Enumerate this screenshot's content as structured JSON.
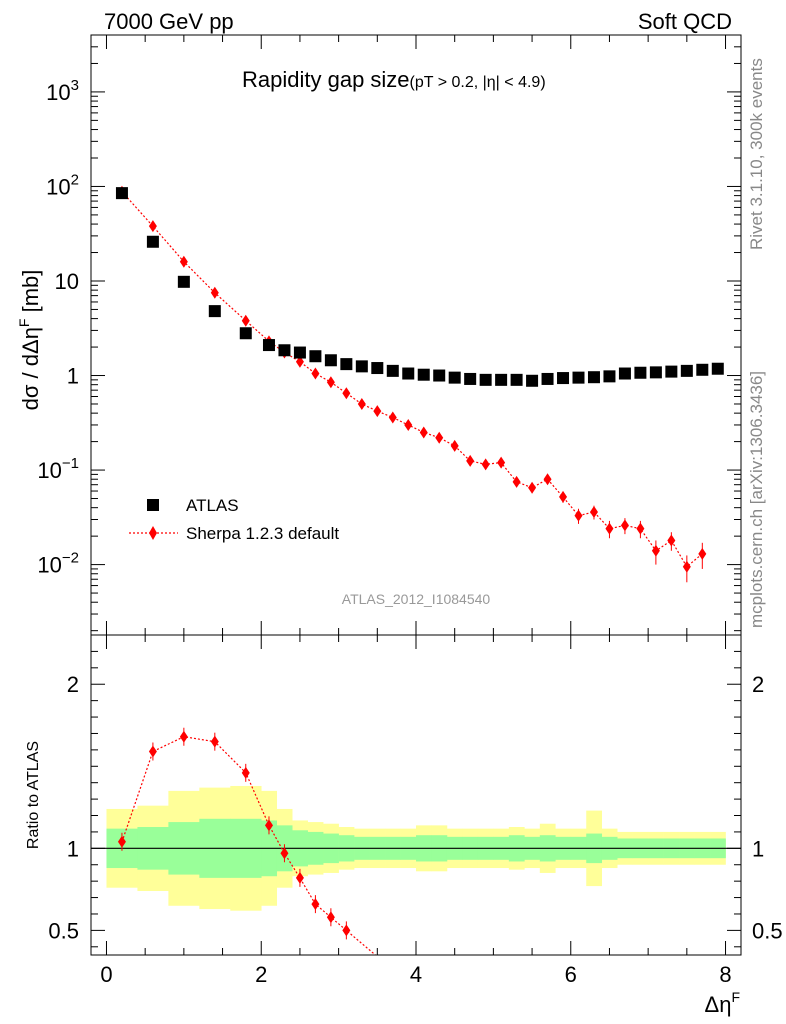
{
  "header": {
    "left": "7000 GeV pp",
    "right": "Soft QCD"
  },
  "side_texts": {
    "rivet": "Rivet 3.1.10,  300k events",
    "mcplots": "mcplots.cern.ch [arXiv:1306.3436]"
  },
  "analysis_id": "ATLAS_2012_I1084540",
  "colors": {
    "data": "#000000",
    "mc": "#ff0000",
    "band_inner": "#99ff99",
    "band_outer": "#ffff99"
  },
  "chart_data": [
    {
      "type": "scatter",
      "title": "Rapidity gap size",
      "title_cut": "(pT > 0.2, |η| < 4.9)",
      "ylabel": "dσ / dΔη",
      "ylabel_sup": "F",
      "ylabel_unit": " [mb]",
      "xlabel": "Δη",
      "xlabel_sup": "F",
      "yscale": "log",
      "xlim": [
        -0.2,
        8.2
      ],
      "ylim": [
        0.0018,
        4000
      ],
      "y_ticks": [
        {
          "value": 1000,
          "base": "10",
          "exp": "3"
        },
        {
          "value": 100,
          "base": "10",
          "exp": "2"
        },
        {
          "value": 10,
          "base": "10",
          "exp": ""
        },
        {
          "value": 1,
          "base": "1",
          "exp": ""
        },
        {
          "value": 0.1,
          "base": "10",
          "exp": "−1"
        },
        {
          "value": 0.01,
          "base": "10",
          "exp": "−2"
        }
      ],
      "x_ticks": [
        0,
        2,
        4,
        6,
        8
      ],
      "legend": [
        {
          "label": "ATLAS",
          "marker": "square"
        },
        {
          "label": "Sherpa 1.2.3 default",
          "marker": "diamond-dotted"
        }
      ],
      "series": [
        {
          "name": "ATLAS",
          "x": [
            0.2,
            0.6,
            1.0,
            1.4,
            1.8,
            2.1,
            2.3,
            2.5,
            2.7,
            2.9,
            3.1,
            3.3,
            3.5,
            3.7,
            3.9,
            4.1,
            4.3,
            4.5,
            4.7,
            4.9,
            5.1,
            5.3,
            5.5,
            5.7,
            5.9,
            6.1,
            6.3,
            6.5,
            6.7,
            6.9,
            7.1,
            7.3,
            7.5,
            7.7,
            7.9
          ],
          "y": [
            85,
            26,
            9.8,
            4.8,
            2.8,
            2.1,
            1.85,
            1.75,
            1.6,
            1.45,
            1.32,
            1.25,
            1.2,
            1.12,
            1.05,
            1.02,
            1.0,
            0.95,
            0.92,
            0.9,
            0.9,
            0.9,
            0.88,
            0.92,
            0.94,
            0.95,
            0.96,
            0.98,
            1.05,
            1.07,
            1.08,
            1.1,
            1.12,
            1.15,
            1.18
          ]
        },
        {
          "name": "Sherpa 1.2.3 default",
          "x": [
            0.2,
            0.6,
            1.0,
            1.4,
            1.8,
            2.1,
            2.3,
            2.5,
            2.7,
            2.9,
            3.1,
            3.3,
            3.5,
            3.7,
            3.9,
            4.1,
            4.3,
            4.5,
            4.7,
            4.9,
            5.1,
            5.3,
            5.5,
            5.7,
            5.9,
            6.1,
            6.3,
            6.5,
            6.7,
            6.9,
            7.1,
            7.3,
            7.5,
            7.7
          ],
          "y": [
            88,
            38,
            16,
            7.5,
            3.8,
            2.3,
            1.75,
            1.4,
            1.05,
            0.85,
            0.65,
            0.5,
            0.42,
            0.36,
            0.3,
            0.25,
            0.22,
            0.18,
            0.125,
            0.115,
            0.12,
            0.075,
            0.065,
            0.08,
            0.052,
            0.033,
            0.036,
            0.024,
            0.026,
            0.024,
            0.014,
            0.018,
            0.0095,
            0.013
          ],
          "yerr": [
            0,
            0,
            0,
            0,
            0,
            0,
            0,
            0,
            0,
            0,
            0,
            0,
            0,
            0,
            0,
            0,
            0,
            0,
            0.01,
            0.01,
            0.01,
            0.008,
            0.008,
            0.008,
            0.007,
            0.006,
            0.006,
            0.005,
            0.005,
            0.005,
            0.004,
            0.004,
            0.003,
            0.004
          ]
        }
      ]
    },
    {
      "type": "line",
      "ylabel": "Ratio to ATLAS",
      "xlabel": "Δη",
      "xlabel_sup": "F",
      "xlim": [
        -0.2,
        8.2
      ],
      "ylim": [
        0.35,
        2.3
      ],
      "y_ticks": [
        0.5,
        1,
        2
      ],
      "x_ticks": [
        0,
        2,
        4,
        6,
        8
      ],
      "reference_line": 1,
      "uncertainty_bands": {
        "edges": [
          0.0,
          0.4,
          0.8,
          1.2,
          1.6,
          2.0,
          2.2,
          2.4,
          2.6,
          2.8,
          3.0,
          3.2,
          3.4,
          3.6,
          3.8,
          4.0,
          4.2,
          4.4,
          4.6,
          4.8,
          5.0,
          5.2,
          5.4,
          5.6,
          5.8,
          6.0,
          6.2,
          6.4,
          6.6,
          6.8,
          7.0,
          7.2,
          7.4,
          7.6,
          7.8,
          8.0
        ],
        "inner_half_width": [
          0.12,
          0.13,
          0.16,
          0.18,
          0.18,
          0.17,
          0.14,
          0.11,
          0.1,
          0.09,
          0.08,
          0.07,
          0.07,
          0.07,
          0.07,
          0.08,
          0.08,
          0.07,
          0.07,
          0.07,
          0.07,
          0.08,
          0.07,
          0.08,
          0.07,
          0.07,
          0.09,
          0.07,
          0.06,
          0.06,
          0.06,
          0.06,
          0.06,
          0.06,
          0.06
        ],
        "outer_half_width": [
          0.24,
          0.26,
          0.35,
          0.37,
          0.38,
          0.35,
          0.24,
          0.17,
          0.16,
          0.15,
          0.13,
          0.12,
          0.12,
          0.12,
          0.12,
          0.14,
          0.14,
          0.12,
          0.12,
          0.12,
          0.12,
          0.13,
          0.12,
          0.15,
          0.12,
          0.12,
          0.23,
          0.12,
          0.1,
          0.1,
          0.1,
          0.1,
          0.1,
          0.1,
          0.1
        ]
      },
      "series": [
        {
          "name": "Sherpa 1.2.3 default",
          "x": [
            0.2,
            0.6,
            1.0,
            1.4,
            1.8,
            2.1,
            2.3,
            2.5,
            2.7,
            2.9,
            3.1
          ],
          "y": [
            1.04,
            1.59,
            1.68,
            1.65,
            1.46,
            1.14,
            0.97,
            0.82,
            0.66,
            0.58,
            0.5
          ]
        }
      ]
    }
  ]
}
